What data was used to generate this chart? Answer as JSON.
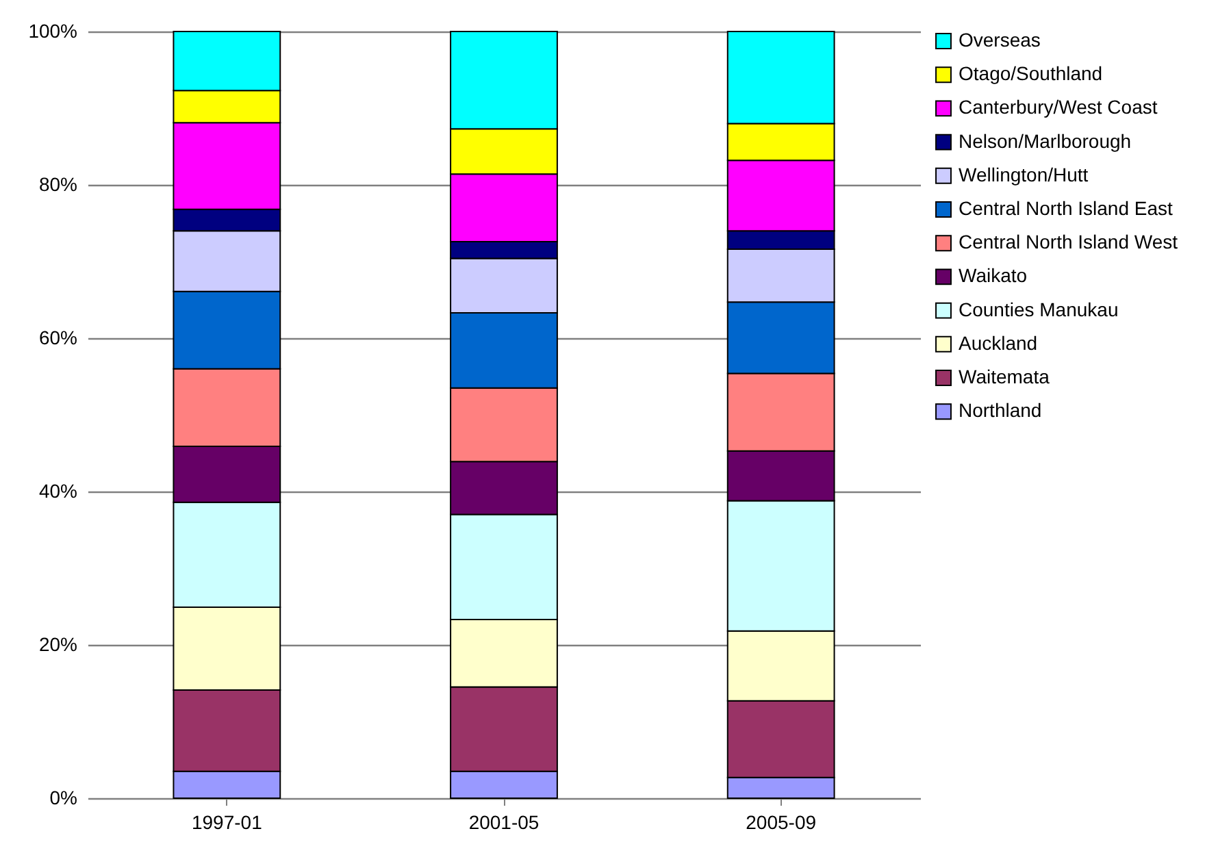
{
  "chart_data": {
    "type": "bar",
    "stacked": true,
    "categories": [
      "1997-01",
      "2001-05",
      "2005-09"
    ],
    "series": [
      {
        "name": "Northland",
        "color": "#9999ff",
        "values": [
          3.5,
          3.5,
          2.7
        ]
      },
      {
        "name": "Waitemata",
        "color": "#993366",
        "values": [
          10.6,
          11.0,
          10.0
        ]
      },
      {
        "name": "Auckland",
        "color": "#ffffcc",
        "values": [
          10.8,
          8.8,
          9.1
        ]
      },
      {
        "name": "Counties Manukau",
        "color": "#ccffff",
        "values": [
          13.7,
          13.7,
          17.0
        ]
      },
      {
        "name": "Waikato",
        "color": "#660066",
        "values": [
          7.3,
          6.9,
          6.5
        ]
      },
      {
        "name": "Central North Island West",
        "color": "#ff8080",
        "values": [
          10.1,
          9.6,
          10.1
        ]
      },
      {
        "name": "Central North Island East",
        "color": "#0066cc",
        "values": [
          10.1,
          9.8,
          9.3
        ]
      },
      {
        "name": "Wellington/Hutt",
        "color": "#ccccff",
        "values": [
          7.9,
          7.1,
          6.9
        ]
      },
      {
        "name": "Nelson/Marlborough",
        "color": "#000080",
        "values": [
          2.8,
          2.2,
          2.4
        ]
      },
      {
        "name": "Canterbury/West Coast",
        "color": "#ff00ff",
        "values": [
          11.3,
          8.8,
          9.2
        ]
      },
      {
        "name": "Otago/Southland",
        "color": "#ffff00",
        "values": [
          4.2,
          5.9,
          4.8
        ]
      },
      {
        "name": "Overseas",
        "color": "#00ffff",
        "values": [
          7.7,
          12.7,
          12.0
        ]
      }
    ],
    "ylim": [
      0,
      100
    ],
    "yticks": [
      {
        "value": 0,
        "label": "0%"
      },
      {
        "value": 20,
        "label": "20%"
      },
      {
        "value": 40,
        "label": "40%"
      },
      {
        "value": 60,
        "label": "60%"
      },
      {
        "value": 80,
        "label": "80%"
      },
      {
        "value": 100,
        "label": "100%"
      }
    ],
    "grid": "y",
    "legend": "right"
  }
}
